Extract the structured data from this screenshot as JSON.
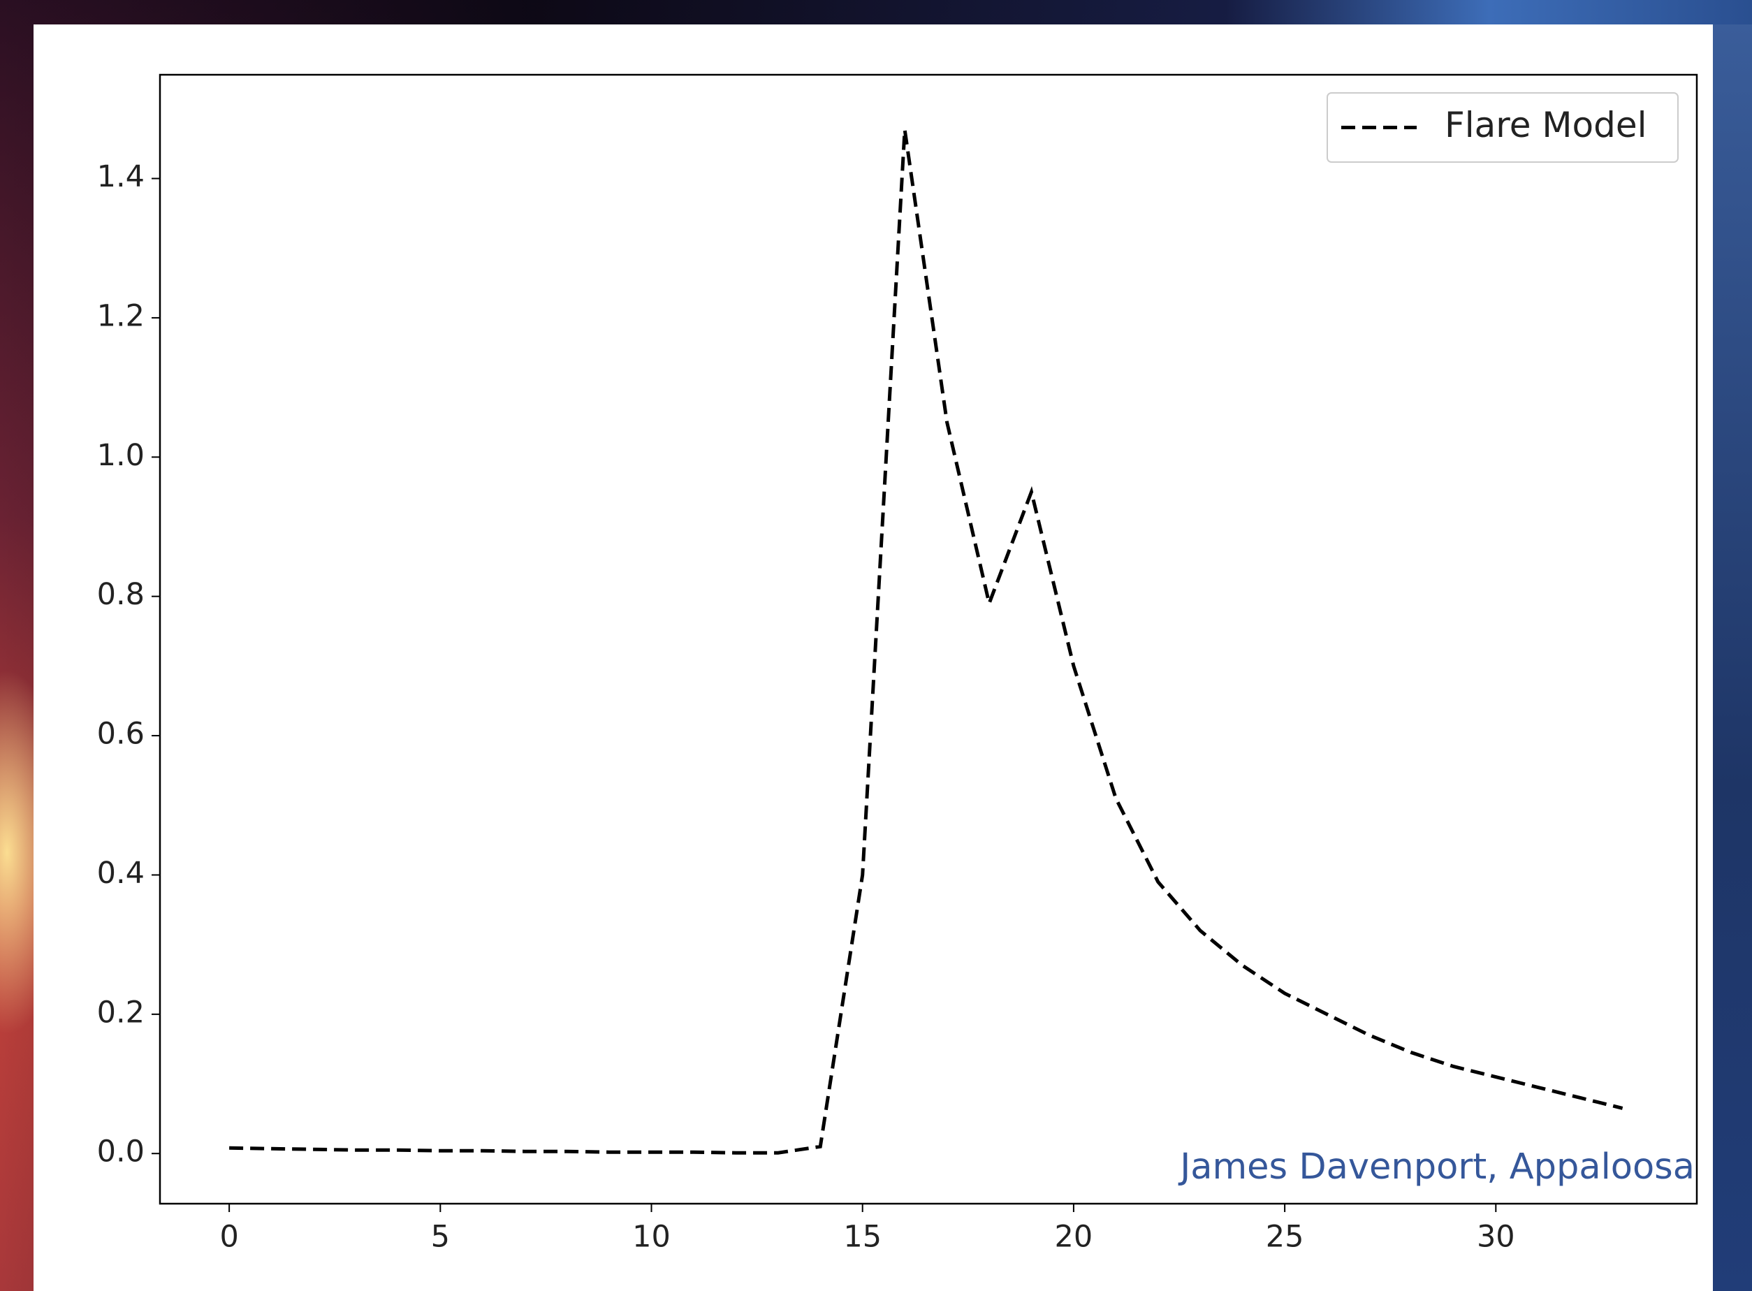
{
  "chart_data": {
    "type": "line",
    "x": [
      0,
      1,
      2,
      3,
      4,
      5,
      6,
      7,
      8,
      9,
      10,
      11,
      12,
      13,
      14,
      15,
      16,
      17,
      18,
      19,
      20,
      21,
      22,
      23,
      24,
      25,
      26,
      27,
      28,
      29,
      30,
      31,
      32,
      33
    ],
    "series": [
      {
        "name": "Flare Model",
        "color": "#000000",
        "linestyle": "dashed",
        "values": [
          0.008,
          0.007,
          0.006,
          0.005,
          0.005,
          0.004,
          0.004,
          0.003,
          0.003,
          0.002,
          0.002,
          0.002,
          0.001,
          0.001,
          0.01,
          0.4,
          1.47,
          1.05,
          0.79,
          0.95,
          0.7,
          0.51,
          0.39,
          0.32,
          0.27,
          0.23,
          0.2,
          0.17,
          0.145,
          0.125,
          0.11,
          0.095,
          0.08,
          0.065
        ]
      }
    ],
    "xlim": [
      -1.64,
      34.76
    ],
    "ylim": [
      -0.072,
      1.549
    ],
    "xticks": [
      0,
      5,
      10,
      15,
      20,
      25,
      30
    ],
    "yticks": [
      {
        "value": 0,
        "label": "0.0"
      },
      0.2,
      0.4,
      0.6,
      0.8,
      {
        "value": 1,
        "label": "1.0"
      },
      1.2,
      1.4
    ],
    "legend": "upper right",
    "annotation": "James Davenport, Appaloosa"
  }
}
